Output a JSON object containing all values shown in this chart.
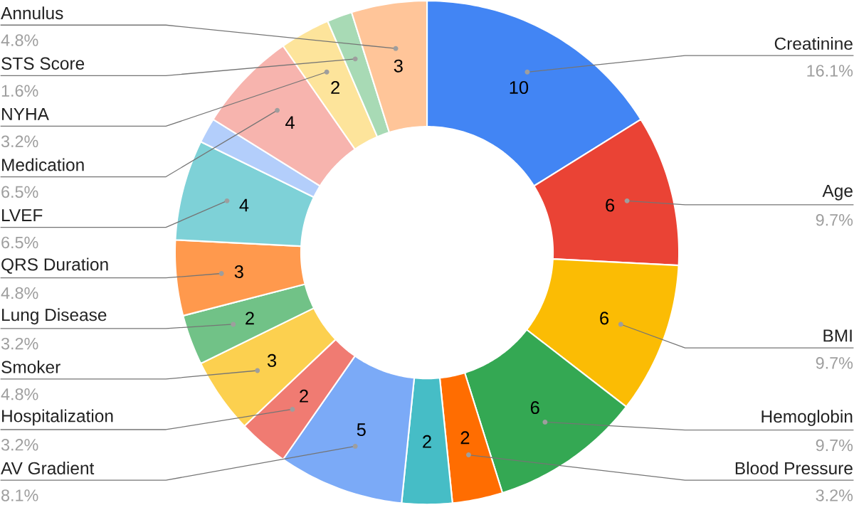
{
  "chart_data": {
    "type": "donut",
    "categories": [
      "Creatinine",
      "Age",
      "BMI",
      "Hemoglobin",
      "Blood Pressure",
      null,
      "AV Gradient",
      "Hospitalization",
      "Smoker",
      "Lung Disease",
      "QRS Duration",
      "LVEF",
      null,
      "Medication",
      "NYHA",
      "STS Score",
      "Annulus"
    ],
    "values": [
      10,
      6,
      6,
      6,
      2,
      2,
      5,
      2,
      3,
      2,
      3,
      4,
      1,
      4,
      2,
      1,
      3
    ],
    "colors": [
      "#4285f4",
      "#ea4335",
      "#fbbc04",
      "#34a853",
      "#ff6d01",
      "#46bdc6",
      "#7baaf7",
      "#f07b72",
      "#fcd04f",
      "#71c287",
      "#ff994d",
      "#7ed1d7",
      "#b3cefb",
      "#f7b4ae",
      "#fde49b",
      "#a8dab5",
      "#ffc599"
    ],
    "value_labels": [
      "10",
      "6",
      "6",
      "6",
      "2",
      "2",
      "5",
      "2",
      "3",
      "2",
      "3",
      "4",
      null,
      "4",
      "2",
      null,
      "3"
    ],
    "annotations": [
      "16.1%",
      "9.7%",
      "9.7%",
      "9.7%",
      "3.2%",
      "8.1%",
      "3.2%",
      "4.8%",
      "3.2%",
      "4.8%",
      "6.5%",
      "6.5%",
      "3.2%",
      "1.6%",
      "4.8%"
    ]
  }
}
